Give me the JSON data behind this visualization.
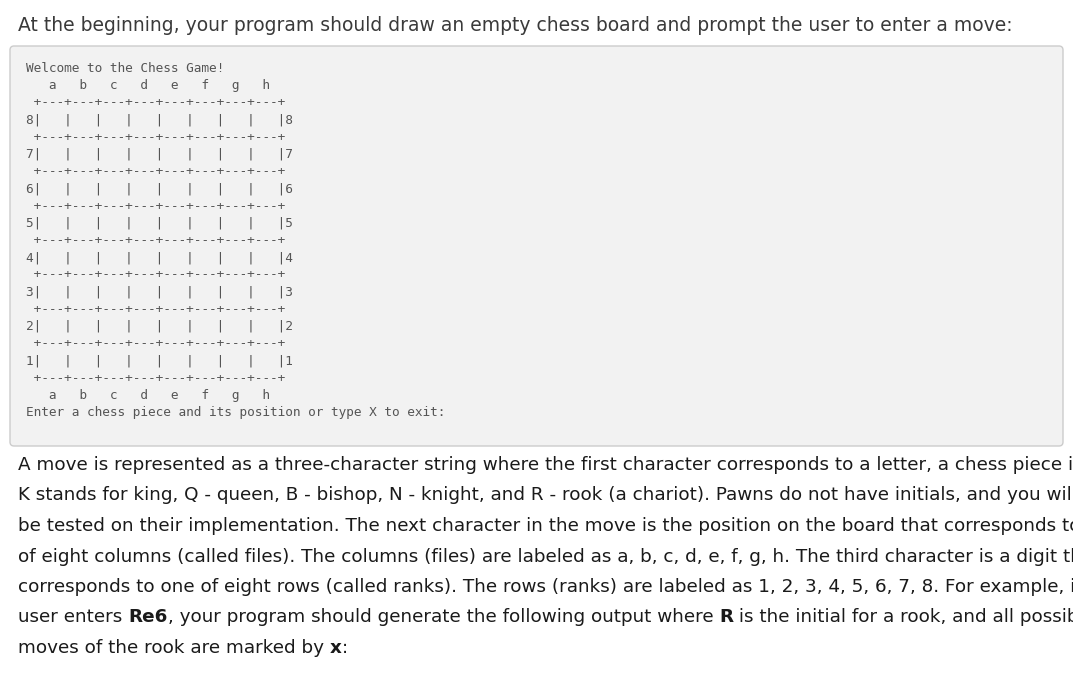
{
  "title_text": "At the beginning, your program should draw an empty chess board and prompt the user to enter a move:",
  "title_color": "#3a3a3a",
  "title_fontsize": 13.5,
  "box_bg": "#f2f2f2",
  "box_border": "#cccccc",
  "code_lines": [
    "Welcome to the Chess Game!",
    "   a   b   c   d   e   f   g   h",
    " +---+---+---+---+---+---+---+---+",
    "8|   |   |   |   |   |   |   |   |8",
    " +---+---+---+---+---+---+---+---+",
    "7|   |   |   |   |   |   |   |   |7",
    " +---+---+---+---+---+---+---+---+",
    "6|   |   |   |   |   |   |   |   |6",
    " +---+---+---+---+---+---+---+---+",
    "5|   |   |   |   |   |   |   |   |5",
    " +---+---+---+---+---+---+---+---+",
    "4|   |   |   |   |   |   |   |   |4",
    " +---+---+---+---+---+---+---+---+",
    "3|   |   |   |   |   |   |   |   |3",
    " +---+---+---+---+---+---+---+---+",
    "2|   |   |   |   |   |   |   |   |2",
    " +---+---+---+---+---+---+---+---+",
    "1|   |   |   |   |   |   |   |   |1",
    " +---+---+---+---+---+---+---+---+",
    "   a   b   c   d   e   f   g   h",
    "Enter a chess piece and its position or type X to exit:"
  ],
  "code_color": "#555555",
  "code_fontsize": 9.2,
  "body_segments": [
    [
      {
        "text": "A move is represented as a three-character string where the first character corresponds to a letter, a chess piece initial:",
        "bold": false
      }
    ],
    [
      {
        "text": "K stands for king, Q - queen, B - bishop, N - knight, and R - rook (a chariot). Pawns do not have initials, and you will not",
        "bold": false
      }
    ],
    [
      {
        "text": "be tested on their implementation. The next character in the move is the position on the board that corresponds to one",
        "bold": false
      }
    ],
    [
      {
        "text": "of eight columns (called files). The columns (files) are labeled as a, b, c, d, e, f, g, h. The third character is a digit that",
        "bold": false
      }
    ],
    [
      {
        "text": "corresponds to one of eight rows (called ranks). The rows (ranks) are labeled as 1, 2, 3, 4, 5, 6, 7, 8. For example, if the",
        "bold": false
      }
    ],
    [
      {
        "text": "user enters ",
        "bold": false
      },
      {
        "text": "Re6",
        "bold": true
      },
      {
        "text": ", your program should generate the following output where ",
        "bold": false
      },
      {
        "text": "R",
        "bold": true
      },
      {
        "text": " is the initial for a rook, and all possible",
        "bold": false
      }
    ],
    [
      {
        "text": "moves of the rook are marked by ",
        "bold": false
      },
      {
        "text": "x",
        "bold": true
      },
      {
        "text": ":",
        "bold": false
      }
    ]
  ],
  "body_fontsize": 13.2,
  "body_color": "#1a1a1a",
  "bg_color": "#ffffff",
  "fig_width": 10.73,
  "fig_height": 6.78,
  "dpi": 100
}
